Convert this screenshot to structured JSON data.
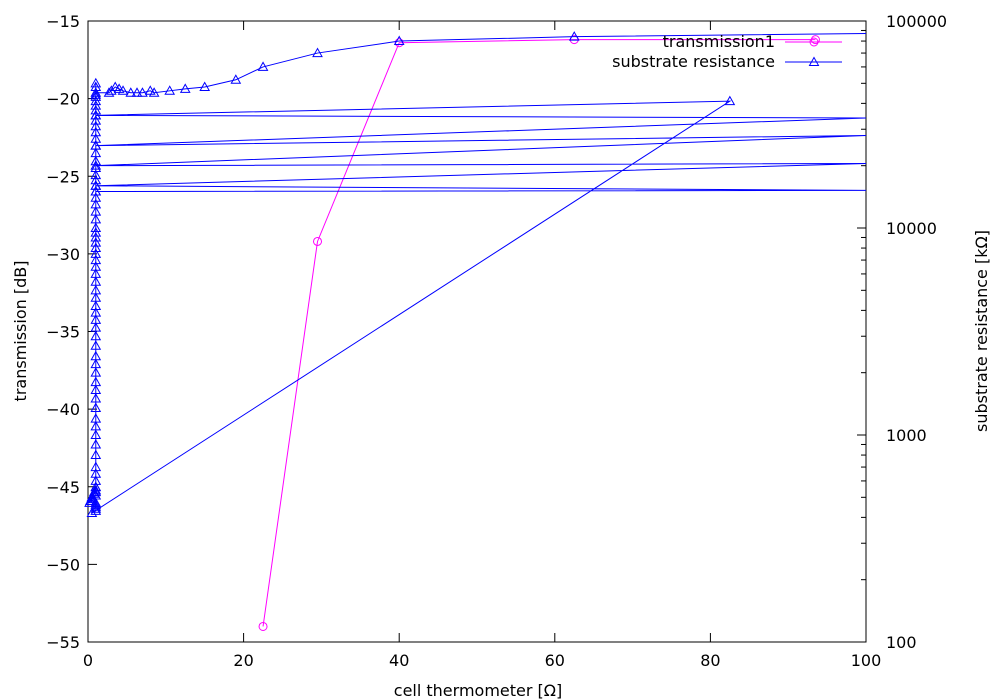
{
  "chart_data": {
    "type": "line",
    "title": "",
    "xlabel": "cell thermometer [Ω]",
    "ylabel": "transmission [dB]",
    "y2label": "substrate resistance [kΩ]",
    "xlim": [
      0,
      100
    ],
    "ylim": [
      -55,
      -15
    ],
    "y2lim": [
      100,
      100000
    ],
    "y2scale": "log",
    "grid": false,
    "legend": "top-right",
    "x_ticks": [
      "0",
      "20",
      "40",
      "60",
      "80",
      "100"
    ],
    "y_ticks": [
      "-15",
      "-20",
      "-25",
      "-30",
      "-35",
      "-40",
      "-45",
      "-50",
      "-55"
    ],
    "y2_ticks": [
      "100000",
      "10000",
      "1000",
      "100"
    ],
    "series": [
      {
        "name": "transmission1",
        "color": "#ff00ff",
        "marker": "circle",
        "axis": "y",
        "x": [
          22.5,
          29.5,
          40,
          62.5,
          93.5
        ],
        "y": [
          -54,
          -29.2,
          -16.4,
          -16.2,
          -16.2
        ]
      },
      {
        "name": "substrate resistance",
        "color": "#0000ff",
        "marker": "triangle",
        "axis": "y2",
        "x": [
          100,
          62.5,
          40,
          29.5,
          22.5,
          19,
          15,
          12.5,
          10.5,
          8.5,
          8,
          7,
          6.3,
          5.5,
          4.5,
          4,
          3.5,
          3,
          2.7,
          1,
          1,
          1,
          1,
          1,
          1,
          1,
          1,
          1,
          1,
          1,
          1,
          1,
          1,
          1,
          1,
          1,
          1,
          1,
          1,
          1,
          1,
          1,
          1,
          1,
          1,
          1,
          1,
          1,
          1,
          1,
          1,
          1,
          1,
          1,
          1,
          1,
          1,
          1,
          1,
          1,
          1,
          1,
          1,
          1,
          1,
          1,
          1,
          1,
          1,
          1,
          1,
          1,
          1,
          1,
          1,
          1,
          1,
          1,
          1,
          0.8,
          0.5,
          0.3,
          0.2,
          0.5,
          1,
          1,
          1,
          0.8,
          0.5,
          0.5,
          1,
          1,
          1,
          1,
          1,
          0.5,
          82.5,
          1,
          100,
          1,
          100,
          1,
          100,
          1,
          100,
          1
        ],
        "y": [
          87000,
          84000,
          80000,
          70000,
          60000,
          52000,
          48000,
          47000,
          46000,
          45000,
          46000,
          45000,
          45000,
          45000,
          46000,
          47000,
          48000,
          46000,
          45000,
          45000,
          48000,
          50000,
          44000,
          43000,
          41000,
          39000,
          37000,
          35000,
          33000,
          31000,
          29000,
          27000,
          25000,
          23000,
          21000,
          19500,
          18000,
          17000,
          16000,
          15000,
          14000,
          13000,
          12000,
          11000,
          10000,
          9500,
          9000,
          8500,
          8000,
          7500,
          7000,
          6500,
          6000,
          5500,
          5000,
          4600,
          4200,
          3900,
          3600,
          3300,
          3000,
          2700,
          2400,
          2200,
          2000,
          1800,
          1650,
          1500,
          1350,
          1200,
          1100,
          1000,
          900,
          800,
          700,
          650,
          600,
          560,
          540,
          520,
          500,
          480,
          470,
          490,
          510,
          530,
          560,
          530,
          500,
          480,
          470,
          460,
          450,
          440,
          430,
          420,
          41000,
          35000,
          34000,
          25000,
          28000,
          20000,
          20500,
          16000,
          15200,
          15000
        ]
      }
    ]
  }
}
